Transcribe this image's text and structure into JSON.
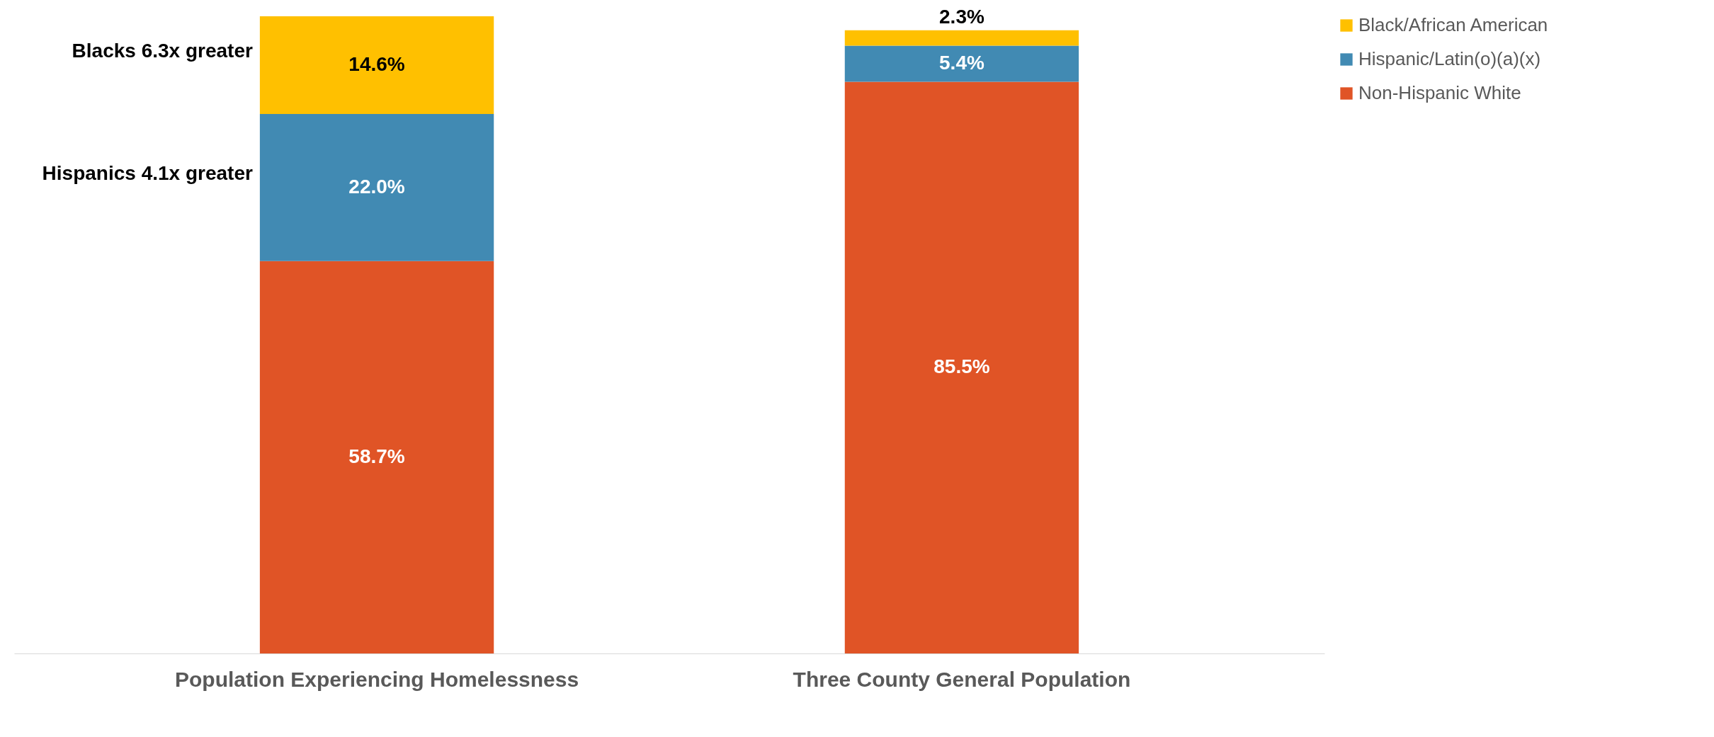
{
  "chart_data": {
    "type": "bar",
    "stacked": true,
    "categories": [
      "Population Experiencing Homelessness",
      "Three County General Population"
    ],
    "series": [
      {
        "name": "Non-Hispanic White",
        "color": "#e05426",
        "values": [
          58.7,
          85.5
        ],
        "value_labels": [
          "58.7%",
          "85.5%"
        ]
      },
      {
        "name": "Hispanic/Latin(o)(a)(x)",
        "color": "#418ab3",
        "values": [
          22.0,
          5.4
        ],
        "value_labels": [
          "22.0%",
          "5.4%"
        ]
      },
      {
        "name": "Black/African American",
        "color": "#ffc000",
        "values": [
          14.6,
          2.3
        ],
        "value_labels": [
          "14.6%",
          "2.3%"
        ]
      }
    ],
    "annotations": [
      "Blacks 6.3x greater",
      "Hispanics 4.1x greater"
    ],
    "legend": "right"
  }
}
